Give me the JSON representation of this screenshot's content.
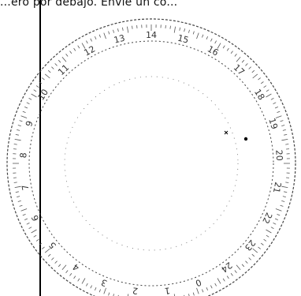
{
  "top_text": "...ero por debajo. Envie un co...",
  "dial": {
    "outer_labels": [
      "14",
      "15",
      "16",
      "17",
      "18",
      "19",
      "20",
      "21",
      "22",
      "23",
      "24",
      "0",
      "1",
      "2",
      "3",
      "4",
      "5",
      "6",
      "7",
      "8",
      "9",
      "10",
      "11",
      "12",
      "13"
    ],
    "inner_labels": [
      "..."
    ]
  },
  "colors": {
    "line": "#000000",
    "text": "#333333"
  }
}
